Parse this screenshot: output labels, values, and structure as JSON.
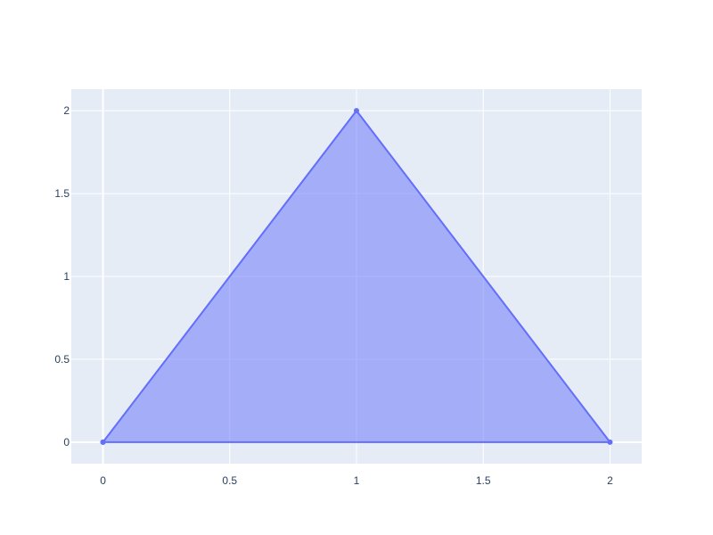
{
  "chart_data": {
    "type": "scatter",
    "title": "",
    "xlabel": "",
    "ylabel": "",
    "xlim": [
      -0.125,
      2.125
    ],
    "ylim": [
      -0.13,
      2.13
    ],
    "grid": true,
    "legend": "none",
    "fill": "toself",
    "x_ticks": [
      0,
      0.5,
      1,
      1.5,
      2
    ],
    "x_tick_labels": [
      "0",
      "0.5",
      "1",
      "1.5",
      "2"
    ],
    "y_ticks": [
      0,
      0.5,
      1,
      1.5,
      2
    ],
    "y_tick_labels": [
      "0",
      "0.5",
      "1",
      "1.5",
      "2"
    ],
    "series": [
      {
        "x": [
          0,
          1,
          2,
          0
        ],
        "y": [
          0,
          2,
          0,
          0
        ]
      }
    ],
    "colors": {
      "plot_background": "#e5ecf6",
      "grid": "#ffffff",
      "line": "#636efa",
      "fill": "rgba(99,110,250,0.5)",
      "tick_text": "#2a3f5f"
    }
  }
}
